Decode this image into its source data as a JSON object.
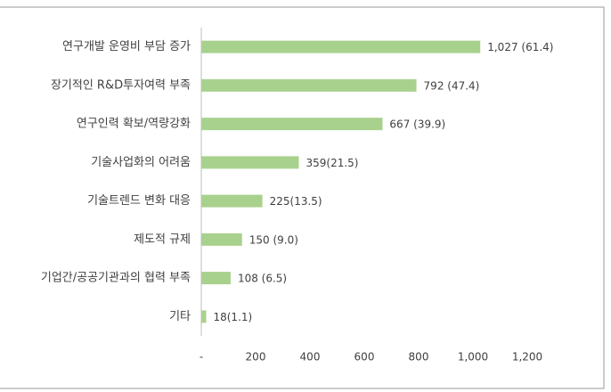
{
  "chart_data": {
    "type": "bar",
    "orientation": "horizontal",
    "categories": [
      "연구개발 운영비 부담 증가",
      "장기적인 R&D투자여력 부족",
      "연구인력 확보/역량강화",
      "기술사업화의 어려움",
      "기술트렌드 변화 대응",
      "제도적 규제",
      "기업간/공공기관과의 협력 부족",
      "기타"
    ],
    "values": [
      1027,
      792,
      667,
      359,
      225,
      150,
      108,
      18
    ],
    "value_labels": [
      "1,027 (61.4)",
      "792 (47.4)",
      "667 (39.9)",
      "359(21.5)",
      "225(13.5)",
      "150 (9.0)",
      "108 (6.5)",
      "18(1.1)"
    ],
    "color": "#a9d18e",
    "xlim": [
      0,
      1200
    ],
    "xticks": [
      {
        "value": 0,
        "label": "-"
      },
      200,
      400,
      600,
      800,
      {
        "value": 1000,
        "label": "1,000"
      },
      {
        "value": 1200,
        "label": "1,200"
      }
    ],
    "grid": false
  }
}
